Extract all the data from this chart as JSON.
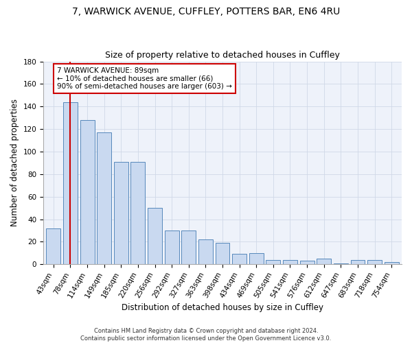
{
  "title_line1": "7, WARWICK AVENUE, CUFFLEY, POTTERS BAR, EN6 4RU",
  "title_line2": "Size of property relative to detached houses in Cuffley",
  "xlabel": "Distribution of detached houses by size in Cuffley",
  "ylabel": "Number of detached properties",
  "categories": [
    "43sqm",
    "78sqm",
    "114sqm",
    "149sqm",
    "185sqm",
    "220sqm",
    "256sqm",
    "292sqm",
    "327sqm",
    "363sqm",
    "398sqm",
    "434sqm",
    "469sqm",
    "505sqm",
    "541sqm",
    "576sqm",
    "612sqm",
    "647sqm",
    "683sqm",
    "718sqm",
    "754sqm"
  ],
  "values": [
    32,
    144,
    128,
    117,
    91,
    91,
    50,
    30,
    30,
    22,
    19,
    9,
    10,
    4,
    4,
    3,
    5,
    1,
    4,
    4,
    2
  ],
  "bar_color": "#c9d9f0",
  "bar_edge_color": "#5588bb",
  "ylim": [
    0,
    180
  ],
  "yticks": [
    0,
    20,
    40,
    60,
    80,
    100,
    120,
    140,
    160,
    180
  ],
  "red_line_x": 1,
  "annotation_text": "7 WARWICK AVENUE: 89sqm\n← 10% of detached houses are smaller (66)\n90% of semi-detached houses are larger (603) →",
  "annotation_box_color": "#ffffff",
  "annotation_box_edge_color": "#cc0000",
  "red_line_color": "#cc0000",
  "grid_color": "#d0d8e8",
  "background_color": "#eef2fa",
  "footer_line1": "Contains HM Land Registry data © Crown copyright and database right 2024.",
  "footer_line2": "Contains public sector information licensed under the Open Government Licence v3.0.",
  "title_fontsize": 10,
  "subtitle_fontsize": 9,
  "axis_label_fontsize": 8.5,
  "tick_fontsize": 7.5,
  "annotation_fontsize": 7.5,
  "footer_fontsize": 6
}
